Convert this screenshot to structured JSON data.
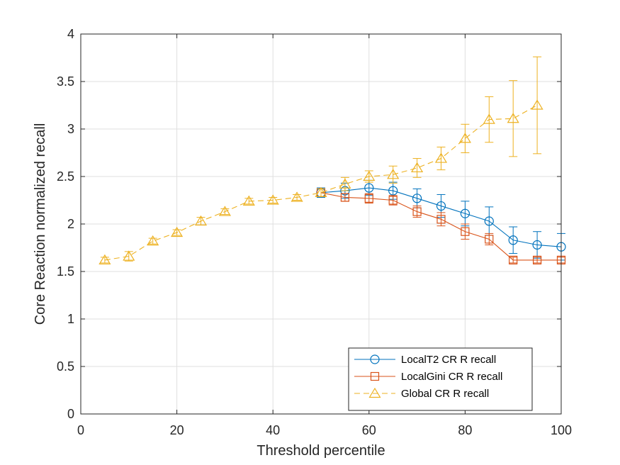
{
  "chart_data": {
    "type": "line",
    "title": "",
    "xlabel": "Threshold percentile",
    "ylabel": "Core Reaction normalized recall",
    "xlim": [
      0,
      100
    ],
    "ylim": [
      0,
      4
    ],
    "xticks": [
      0,
      20,
      40,
      60,
      80,
      100
    ],
    "xtick_labels": [
      "0",
      "20",
      "40",
      "60",
      "80",
      "100"
    ],
    "yticks": [
      0,
      0.5,
      1,
      1.5,
      2,
      2.5,
      3,
      3.5,
      4
    ],
    "ytick_labels": [
      "0",
      "0.5",
      "1",
      "1.5",
      "2",
      "2.5",
      "3",
      "3.5",
      "4"
    ],
    "grid": true,
    "legend_position": "bottom-right",
    "series": [
      {
        "name": "LocalT2 CR R recall",
        "color": "#0072BD",
        "marker": "circle",
        "line_style": "solid",
        "x": [
          50,
          55,
          60,
          65,
          70,
          75,
          80,
          85,
          90,
          95,
          100
        ],
        "y": [
          2.33,
          2.35,
          2.38,
          2.35,
          2.27,
          2.19,
          2.11,
          2.03,
          1.83,
          1.78,
          1.76
        ],
        "err": [
          0.05,
          0.08,
          0.08,
          0.09,
          0.1,
          0.12,
          0.13,
          0.15,
          0.14,
          0.14,
          0.14
        ]
      },
      {
        "name": "LocalGini CR R recall",
        "color": "#D95319",
        "marker": "square",
        "line_style": "solid",
        "x": [
          50,
          55,
          60,
          65,
          70,
          75,
          80,
          85,
          90,
          95,
          100
        ],
        "y": [
          2.33,
          2.28,
          2.27,
          2.25,
          2.13,
          2.05,
          1.92,
          1.84,
          1.62,
          1.62,
          1.62
        ],
        "err": [
          0.04,
          0.04,
          0.05,
          0.05,
          0.06,
          0.07,
          0.08,
          0.06,
          0.03,
          0.03,
          0.03
        ]
      },
      {
        "name": "Global CR R recall",
        "color": "#EDB120",
        "marker": "triangle",
        "line_style": "dashed",
        "x": [
          5,
          10,
          15,
          20,
          25,
          30,
          35,
          40,
          45,
          50,
          55,
          60,
          65,
          70,
          75,
          80,
          85,
          90,
          95
        ],
        "y": [
          1.62,
          1.66,
          1.82,
          1.91,
          2.03,
          2.13,
          2.24,
          2.25,
          2.28,
          2.33,
          2.42,
          2.5,
          2.52,
          2.59,
          2.69,
          2.9,
          3.1,
          3.11,
          3.25
        ],
        "err": [
          0.03,
          0.05,
          0.03,
          0.03,
          0.04,
          0.03,
          0.03,
          0.03,
          0.03,
          0.04,
          0.07,
          0.06,
          0.09,
          0.1,
          0.12,
          0.15,
          0.24,
          0.4,
          0.51
        ]
      }
    ]
  }
}
